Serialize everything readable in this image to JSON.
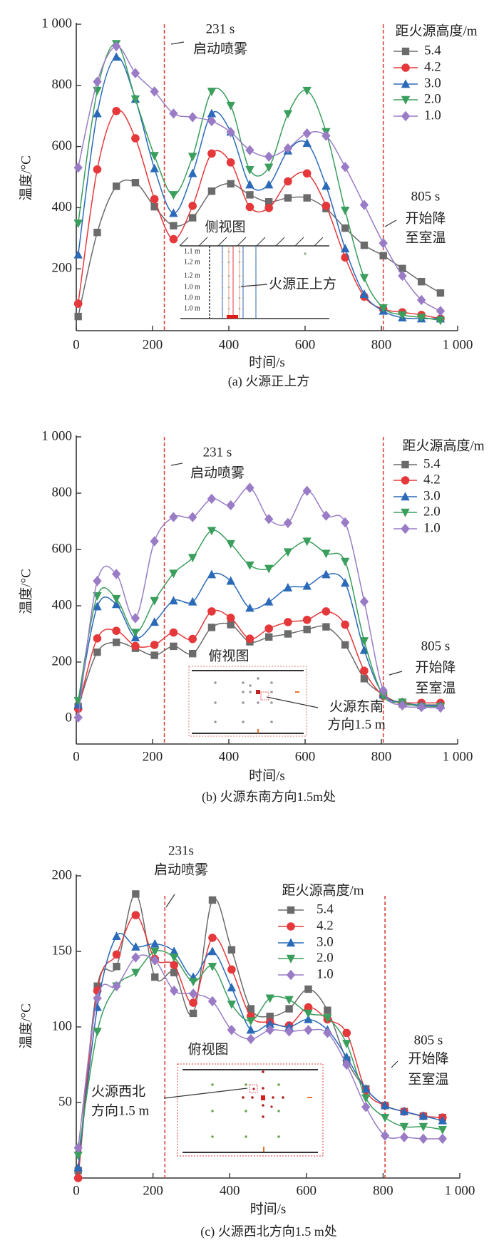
{
  "chart_data": [
    {
      "type": "line",
      "caption": "(a) 火源正上方",
      "xlabel": "时间/s",
      "ylabel": "温度/°C",
      "xlim": [
        0,
        1000
      ],
      "ylim": [
        0,
        1000
      ],
      "xticks": [
        0,
        200,
        400,
        600,
        800,
        1000
      ],
      "xtick_labels": [
        "0",
        "200",
        "400",
        "600",
        "800",
        "1 000"
      ],
      "yticks": [
        200,
        400,
        600,
        800,
        1000
      ],
      "ytick_labels": [
        "200",
        "400",
        "600",
        "800",
        "1 000"
      ],
      "grid": false,
      "legend_title": "距火源高度/m",
      "legend": "top-right",
      "x": [
        5,
        55,
        105,
        155,
        205,
        255,
        305,
        355,
        405,
        455,
        505,
        555,
        605,
        655,
        705,
        755,
        805,
        855,
        905,
        955
      ],
      "series": [
        {
          "name": "5.4",
          "color": "#6b6b6b",
          "marker": "square",
          "values": [
            44,
            319,
            470,
            482,
            403,
            341,
            367,
            454,
            478,
            442,
            419,
            432,
            432,
            397,
            333,
            277,
            243,
            201,
            158,
            121
          ]
        },
        {
          "name": "4.2",
          "color": "#e5383b",
          "marker": "circle",
          "values": [
            86,
            525,
            716,
            627,
            428,
            297,
            406,
            577,
            548,
            402,
            399,
            486,
            512,
            406,
            237,
            109,
            68,
            58,
            49,
            37
          ]
        },
        {
          "name": "3.0",
          "color": "#2a6ab8",
          "marker": "triangle-up",
          "values": [
            246,
            708,
            893,
            755,
            528,
            382,
            512,
            708,
            648,
            475,
            475,
            586,
            611,
            471,
            266,
            117,
            62,
            40,
            37,
            37
          ]
        },
        {
          "name": "2.0",
          "color": "#3a9e5c",
          "marker": "triangle-down",
          "values": [
            349,
            783,
            936,
            755,
            570,
            442,
            567,
            780,
            734,
            524,
            532,
            707,
            783,
            648,
            391,
            171,
            72,
            49,
            41,
            31
          ]
        },
        {
          "name": "1.0",
          "color": "#9a7cc6",
          "marker": "diamond",
          "values": [
            531,
            812,
            928,
            840,
            780,
            708,
            696,
            683,
            647,
            588,
            567,
            594,
            643,
            635,
            533,
            409,
            284,
            177,
            98,
            62
          ]
        }
      ],
      "annotations": {
        "spray_time": 231,
        "spray_label": "231 s",
        "spray_text": "启动喷雾",
        "cool_time": 805,
        "cool_label": "805 s",
        "cool_text_1": "开始降",
        "cool_text_2": "至室温",
        "line_color": "#d9423a"
      },
      "inset": {
        "title": "侧视图",
        "pointer": "火源正上方",
        "spacings": [
          "1.1 m",
          "1.2 m",
          "1.2 m",
          "1.0 m",
          "1.0 m",
          "1.0 m"
        ]
      }
    },
    {
      "type": "line",
      "caption": "(b) 火源东南方向1.5m处",
      "xlabel": "时间/s",
      "ylabel": "温度/°C",
      "xlim": [
        0,
        1000
      ],
      "ylim": [
        -90,
        1000
      ],
      "xticks": [
        0,
        200,
        400,
        600,
        800,
        1000
      ],
      "xtick_labels": [
        "0",
        "200",
        "400",
        "600",
        "800",
        "1 000"
      ],
      "yticks": [
        0,
        200,
        400,
        600,
        800,
        1000
      ],
      "ytick_labels": [
        "0",
        "200",
        "400",
        "600",
        "800",
        "1 000"
      ],
      "grid": false,
      "legend_title": "距火源高度/m",
      "legend": "top-right",
      "x": [
        5,
        55,
        105,
        155,
        205,
        255,
        305,
        355,
        405,
        455,
        505,
        555,
        605,
        655,
        705,
        755,
        805,
        855,
        905,
        955
      ],
      "series": [
        {
          "name": "5.4",
          "color": "#6b6b6b",
          "marker": "square",
          "values": [
            42,
            235,
            270,
            249,
            224,
            256,
            230,
            323,
            333,
            272,
            289,
            300,
            316,
            325,
            261,
            141,
            84,
            51,
            48,
            48
          ]
        },
        {
          "name": "4.2",
          "color": "#e5383b",
          "marker": "circle",
          "values": [
            34,
            284,
            311,
            257,
            261,
            305,
            282,
            380,
            357,
            283,
            319,
            342,
            350,
            380,
            333,
            169,
            80,
            57,
            55,
            55
          ]
        },
        {
          "name": "3.0",
          "color": "#2a6ab8",
          "marker": "triangle-up",
          "values": [
            48,
            397,
            405,
            287,
            342,
            418,
            414,
            511,
            488,
            392,
            414,
            464,
            470,
            511,
            481,
            242,
            84,
            57,
            46,
            46
          ]
        },
        {
          "name": "2.0",
          "color": "#3a9e5c",
          "marker": "triangle-down",
          "values": [
            63,
            435,
            425,
            305,
            418,
            515,
            571,
            667,
            620,
            544,
            532,
            591,
            629,
            586,
            557,
            275,
            80,
            57,
            42,
            42
          ]
        },
        {
          "name": "1.0",
          "color": "#9a7cc6",
          "marker": "diamond",
          "values": [
            3,
            488,
            513,
            356,
            629,
            715,
            715,
            780,
            757,
            819,
            708,
            694,
            808,
            720,
            696,
            415,
            99,
            46,
            40,
            38
          ]
        }
      ],
      "annotations": {
        "spray_time": 231,
        "spray_label": "231 s",
        "spray_text": "启动喷雾",
        "cool_time": 805,
        "cool_label": "805 s",
        "cool_text_1": "开始降",
        "cool_text_2": "至室温",
        "line_color": "#d9423a"
      },
      "inset": {
        "title": "俯视图",
        "pointer_1": "火源东南",
        "pointer_2": "方向1.5 m"
      }
    },
    {
      "type": "line",
      "caption": "(c) 火源西北方向1.5 m处",
      "xlabel": "时间/s",
      "ylabel": "温度/°C",
      "xlim": [
        0,
        1000
      ],
      "ylim": [
        0,
        200
      ],
      "xticks": [
        0,
        200,
        400,
        600,
        800,
        1000
      ],
      "xtick_labels": [
        "0",
        "200",
        "400",
        "600",
        "800",
        "1 000"
      ],
      "yticks": [
        50,
        100,
        150,
        200
      ],
      "ytick_labels": [
        "50",
        "100",
        "150",
        "200"
      ],
      "grid": false,
      "legend_title": "距火源高度/m",
      "legend": "top-center",
      "x": [
        5,
        55,
        105,
        155,
        205,
        255,
        305,
        355,
        405,
        455,
        505,
        555,
        605,
        655,
        705,
        755,
        805,
        855,
        905,
        955
      ],
      "series": [
        {
          "name": "5.4",
          "color": "#6b6b6b",
          "marker": "square",
          "values": [
            5,
            127,
            140,
            188,
            133,
            136,
            109,
            184,
            151,
            112,
            107,
            112,
            125,
            111,
            78,
            59,
            48,
            44,
            41,
            40
          ]
        },
        {
          "name": "4.2",
          "color": "#e5383b",
          "marker": "circle",
          "values": [
            0,
            124,
            148,
            174,
            145,
            141,
            116,
            159,
            138,
            107,
            103,
            101,
            113,
            105,
            96,
            58,
            48,
            44,
            41,
            40
          ]
        },
        {
          "name": "3.0",
          "color": "#2a6ab8",
          "marker": "triangle-up",
          "values": [
            7,
            113,
            160,
            153,
            155,
            150,
            133,
            150,
            126,
            98,
            102,
            100,
            105,
            98,
            80,
            59,
            48,
            44,
            41,
            38
          ]
        },
        {
          "name": "2.0",
          "color": "#3a9e5c",
          "marker": "triangle-down",
          "values": [
            15,
            97,
            127,
            136,
            150,
            146,
            130,
            140,
            115,
            104,
            119,
            118,
            109,
            106,
            89,
            53,
            40,
            34,
            34,
            32
          ]
        },
        {
          "name": "1.0",
          "color": "#9a7cc6",
          "marker": "diamond",
          "values": [
            20,
            119,
            127,
            146,
            144,
            124,
            122,
            117,
            98,
            92,
            98,
            97,
            98,
            96,
            75,
            47,
            28,
            27,
            26,
            26
          ]
        }
      ],
      "annotations": {
        "spray_time": 231,
        "spray_label": "231s",
        "spray_text": "启动喷雾",
        "cool_time": 805,
        "cool_label": "805 s",
        "cool_text_1": "开始降",
        "cool_text_2": "至室温",
        "line_color": "#d9423a"
      },
      "inset": {
        "title": "俯视图",
        "pointer_1": "火源西北",
        "pointer_2": "方向1.5 m"
      }
    }
  ]
}
